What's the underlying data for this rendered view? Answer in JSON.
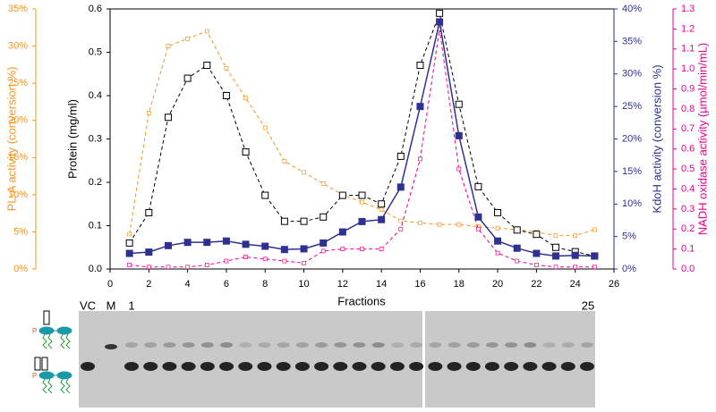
{
  "chart_data": {
    "type": "line",
    "xlabel": "Fractions",
    "ylabel": "Protein (mg/ml)",
    "y2label": "KdoH activity (conversion %)",
    "y3label": "PL-A activity (conversion %)",
    "y4label": "NADH oxidase activity (µmol/min/mL)",
    "x": [
      1,
      2,
      3,
      4,
      5,
      6,
      7,
      8,
      9,
      10,
      11,
      12,
      13,
      14,
      15,
      16,
      17,
      18,
      19,
      20,
      21,
      22,
      23,
      24,
      25
    ],
    "xlim": [
      0,
      26
    ],
    "xticks": [
      0,
      2,
      4,
      6,
      8,
      10,
      12,
      14,
      16,
      18,
      20,
      22,
      24,
      26
    ],
    "ylim": [
      0,
      0.6
    ],
    "yticks": [
      {
        "value": 0,
        "label": "0.0"
      },
      0.1,
      0.2,
      0.3,
      0.4,
      0.5,
      0.6
    ],
    "y2lim": [
      0,
      40
    ],
    "y2ticks": [
      {
        "value": 0,
        "label": "0%"
      },
      {
        "value": 5,
        "label": "5%"
      },
      {
        "value": 10,
        "label": "10%"
      },
      {
        "value": 15,
        "label": "15%"
      },
      {
        "value": 20,
        "label": "20%"
      },
      {
        "value": 25,
        "label": "25%"
      },
      {
        "value": 30,
        "label": "30%"
      },
      {
        "value": 35,
        "label": "35%"
      },
      {
        "value": 40,
        "label": "40%"
      }
    ],
    "y3lim": [
      0,
      35
    ],
    "y3ticks": [
      {
        "value": 0,
        "label": "0%"
      },
      {
        "value": 5,
        "label": "5%"
      },
      {
        "value": 10,
        "label": "10%"
      },
      {
        "value": 15,
        "label": "15%"
      },
      {
        "value": 20,
        "label": "20%"
      },
      {
        "value": 25,
        "label": "25%"
      },
      {
        "value": 30,
        "label": "30%"
      },
      {
        "value": 35,
        "label": "35%"
      }
    ],
    "y4lim": [
      0,
      1.3
    ],
    "y4ticks": [
      {
        "value": 0,
        "label": "0.0"
      },
      0.1,
      0.2,
      0.3,
      0.4,
      0.5,
      0.6,
      0.7,
      0.8,
      0.9,
      {
        "value": 1,
        "label": "1.0"
      },
      1.1,
      1.2,
      1.3
    ],
    "series": [
      {
        "axis": "y3",
        "color": "#f7941d",
        "line_style": "dashed",
        "marker": "small-open",
        "values": [
          4.7,
          21,
          30,
          31,
          32,
          27,
          23,
          19,
          14.5,
          13,
          11.5,
          10,
          9,
          8,
          6.5,
          6.2,
          6,
          6,
          5.7,
          5.5,
          5.3,
          5,
          4.5,
          4.5,
          5.3
        ]
      },
      {
        "axis": "y4",
        "color": "#ec008c",
        "line_style": "dashed",
        "marker": "small-open",
        "values": [
          0.02,
          0.01,
          0.01,
          0.01,
          0.02,
          0.04,
          0.06,
          0.05,
          0.04,
          0.03,
          0.09,
          0.1,
          0.1,
          0.1,
          0.2,
          0.55,
          1.2,
          0.5,
          0.2,
          0.08,
          0.04,
          0.02,
          0.01,
          0.01,
          0.01
        ]
      },
      {
        "axis": "y",
        "color": "#000000",
        "line_style": "dashed",
        "marker": "open-square",
        "values": [
          0.06,
          0.13,
          0.35,
          0.44,
          0.47,
          0.4,
          0.27,
          0.17,
          0.11,
          0.11,
          0.12,
          0.17,
          0.17,
          0.15,
          0.26,
          0.47,
          0.59,
          0.38,
          0.19,
          0.13,
          0.09,
          0.08,
          0.05,
          0.04,
          0.03
        ]
      },
      {
        "axis": "y2",
        "color": "#2e3192",
        "line_style": "solid",
        "marker": "filled-square",
        "values": [
          2.4,
          2.6,
          3.6,
          4.1,
          4.1,
          4.3,
          3.8,
          3.5,
          3.0,
          3.1,
          4.0,
          5.7,
          7.3,
          7.6,
          12.6,
          25,
          38,
          20.5,
          8,
          4.3,
          3.2,
          2.4,
          2,
          2.1,
          2
        ]
      }
    ]
  },
  "gel": {
    "labels": [
      "VC",
      "M",
      "1",
      "25"
    ]
  }
}
